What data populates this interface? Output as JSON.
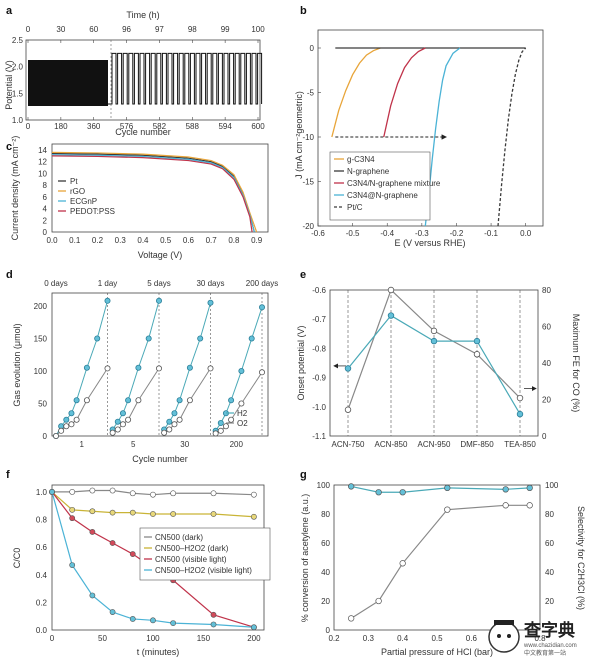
{
  "panels": {
    "a": {
      "letter": "a",
      "top_xlabel": "Time (h)",
      "xlabel": "Cycle number",
      "ylabel": "Potential (V)",
      "top_ticks": [
        "0",
        "30",
        "60",
        "96",
        "97",
        "98",
        "99",
        "100"
      ],
      "bottom_ticks": [
        "0",
        "180",
        "360",
        "576",
        "582",
        "588",
        "594",
        "600"
      ],
      "y_ticks": [
        "1.0",
        "1.5",
        "2.0",
        "2.5"
      ]
    },
    "b": {
      "letter": "b",
      "xlabel": "E (V versus RHE)",
      "ylabel": "J (mA cm⁻²geometric)",
      "x_ticks": [
        "-0.6",
        "-0.5",
        "-0.4",
        "-0.3",
        "-0.2",
        "-0.1",
        "0.0"
      ],
      "y_ticks": [
        "0",
        "-5",
        "-10",
        "-15",
        "-20"
      ],
      "legend": [
        "g-C3N4",
        "N-graphene",
        "C3N4/N-graphene mixture",
        "C3N4@N-graphene",
        "Pt/C"
      ]
    },
    "c": {
      "letter": "c",
      "xlabel": "Voltage (V)",
      "ylabel": "Current density (mA cm⁻²)",
      "x_ticks": [
        "0.0",
        "0.1",
        "0.2",
        "0.3",
        "0.4",
        "0.5",
        "0.6",
        "0.7",
        "0.8",
        "0.9"
      ],
      "y_ticks": [
        "0",
        "2",
        "4",
        "6",
        "8",
        "10",
        "12",
        "14"
      ],
      "legend": [
        "Pt",
        "rGO",
        "ECGnP",
        "PEDOT:PSS"
      ]
    },
    "d": {
      "letter": "d",
      "xlabel": "Cycle number",
      "ylabel": "Gas evolution (μmol)",
      "top_labels": [
        "0 days",
        "1 day",
        "5 days",
        "30 days",
        "200 days"
      ],
      "y_ticks": [
        "0",
        "50",
        "100",
        "150",
        "200"
      ],
      "x_ticks": [
        "1",
        "5",
        "30",
        "200"
      ],
      "legend": [
        "H2",
        "O2"
      ]
    },
    "e": {
      "letter": "e",
      "ylabel": "Onset potential (V)",
      "ylabel_right": "Maximum FE for CO (%)",
      "x_ticks": [
        "ACN-750",
        "ACN-850",
        "ACN-950",
        "DMF-850",
        "TEA-850"
      ],
      "y_ticks": [
        "-0.6",
        "-0.7",
        "-0.8",
        "-0.9",
        "-1.0",
        "-1.1"
      ],
      "y_ticks_right": [
        "80",
        "60",
        "40",
        "20",
        "0"
      ]
    },
    "f": {
      "letter": "f",
      "xlabel": "t (minutes)",
      "ylabel": "C/C0",
      "x_ticks": [
        "0",
        "50",
        "100",
        "150",
        "200"
      ],
      "y_ticks": [
        "0.0",
        "0.2",
        "0.4",
        "0.6",
        "0.8",
        "1.0"
      ],
      "legend": [
        "CN500 (dark)",
        "CN500–H2O2 (dark)",
        "CN500 (visible light)",
        "CN500–H2O2 (visible light)"
      ]
    },
    "g": {
      "letter": "g",
      "xlabel": "Partial pressure of HCl (bar)",
      "ylabel": "% conversion of acetylene (a.u.)",
      "ylabel_right": "Selectivity for C2H3Cl (%)",
      "x_ticks": [
        "0.2",
        "0.3",
        "0.4",
        "0.5",
        "0.6",
        "0.7",
        "0.8"
      ],
      "y_ticks": [
        "0",
        "20",
        "40",
        "60",
        "80",
        "100"
      ],
      "y_ticks_right": [
        "20",
        "40",
        "60",
        "80",
        "100"
      ]
    }
  },
  "watermark": {
    "title": "查字典",
    "subtitle": "www.chazidian.com",
    "tagline": "中文教育第一站"
  },
  "colors": {
    "orange": "#e8a53a",
    "red": "#c0334a",
    "blue": "#4bb3d6",
    "grey": "#888888",
    "teal": "#4aa9b7",
    "olive": "#c9b436",
    "dark": "#3a3a3a"
  },
  "chart_data": [
    {
      "id": "a",
      "type": "line",
      "x_cycle_ticks": [
        0,
        180,
        360,
        576,
        582,
        588,
        594,
        600
      ],
      "potential_high": 2.25,
      "potential_low": 1.3,
      "ylim": [
        1.0,
        2.5
      ],
      "xlabel": "Cycle number",
      "ylabel": "Potential (V)"
    },
    {
      "id": "b",
      "type": "line",
      "xlim": [
        -0.6,
        0.05
      ],
      "ylim": [
        -20,
        0
      ],
      "series": [
        {
          "name": "g-C3N4",
          "x": [
            -0.56,
            -0.54,
            -0.52,
            -0.5,
            -0.48,
            -0.46,
            -0.44,
            -0.42
          ],
          "y": [
            -10,
            -7,
            -4.8,
            -3,
            -1.7,
            -0.8,
            -0.3,
            0
          ]
        },
        {
          "name": "N-graphene",
          "x": [
            -0.55,
            -0.45,
            -0.35,
            -0.25,
            -0.15,
            -0.05,
            0.0
          ],
          "y": [
            0,
            0,
            0,
            0,
            0,
            0,
            0
          ]
        },
        {
          "name": "C3N4/N-graphene mixture",
          "x": [
            -0.41,
            -0.39,
            -0.37,
            -0.35,
            -0.33,
            -0.31,
            -0.29
          ],
          "y": [
            -10,
            -6.5,
            -4,
            -2.2,
            -1.1,
            -0.4,
            0
          ]
        },
        {
          "name": "C3N4@N-graphene",
          "x": [
            -0.29,
            -0.28,
            -0.27,
            -0.26,
            -0.25,
            -0.24,
            -0.23,
            -0.21,
            -0.19
          ],
          "y": [
            -20,
            -16.5,
            -12.5,
            -9,
            -6,
            -3.6,
            -2,
            -0.6,
            0
          ]
        },
        {
          "name": "Pt/C",
          "x": [
            -0.08,
            -0.07,
            -0.06,
            -0.05,
            -0.04,
            -0.03,
            -0.02,
            -0.01,
            0.0
          ],
          "y": [
            -20,
            -15.5,
            -11.5,
            -8,
            -5.2,
            -3,
            -1.4,
            -0.4,
            0
          ]
        }
      ],
      "arrow": {
        "from_x": -0.55,
        "to_x": -0.23,
        "y": -10
      }
    },
    {
      "id": "c",
      "type": "line",
      "xlim": [
        0,
        0.95
      ],
      "ylim": [
        0,
        14
      ],
      "series": [
        {
          "name": "Pt",
          "x": [
            0,
            0.2,
            0.4,
            0.6,
            0.7,
            0.75,
            0.8,
            0.84,
            0.87,
            0.89
          ],
          "y": [
            13.4,
            13.3,
            13.1,
            12.6,
            12.0,
            11.2,
            9.5,
            6.5,
            3.0,
            0
          ]
        },
        {
          "name": "rGO",
          "x": [
            0,
            0.2,
            0.4,
            0.6,
            0.7,
            0.75,
            0.8,
            0.84,
            0.87,
            0.9
          ],
          "y": [
            13.6,
            13.5,
            13.3,
            12.8,
            12.2,
            11.4,
            9.8,
            6.8,
            3.3,
            0
          ]
        },
        {
          "name": "ECGnP",
          "x": [
            0,
            0.2,
            0.4,
            0.6,
            0.7,
            0.75,
            0.8,
            0.84,
            0.87,
            0.89
          ],
          "y": [
            13.2,
            13.1,
            12.9,
            12.4,
            11.8,
            11.0,
            9.3,
            6.3,
            2.9,
            0
          ]
        },
        {
          "name": "PEDOT:PSS",
          "x": [
            0,
            0.2,
            0.4,
            0.6,
            0.7,
            0.75,
            0.8,
            0.84,
            0.87,
            0.88
          ],
          "y": [
            13.0,
            12.9,
            12.7,
            12.2,
            11.6,
            10.8,
            9.0,
            6.0,
            2.6,
            0
          ]
        }
      ]
    },
    {
      "id": "d",
      "type": "scatter",
      "ylim": [
        0,
        220
      ],
      "series": [
        {
          "name": "H2",
          "x": [
            0,
            0.5,
            1,
            1.5,
            2,
            3,
            4,
            5,
            5.5,
            6,
            6.5,
            7,
            8,
            9,
            10,
            10.5,
            11,
            11.5,
            12,
            13,
            14,
            15,
            15.5,
            16,
            16.5,
            17,
            18,
            19,
            20
          ],
          "y": [
            0,
            15,
            25,
            35,
            55,
            105,
            150,
            208,
            10,
            22,
            35,
            55,
            105,
            150,
            208,
            10,
            22,
            35,
            55,
            105,
            150,
            205,
            8,
            20,
            35,
            55,
            100,
            150,
            198
          ]
        },
        {
          "name": "O2",
          "x": [
            0,
            0.5,
            1,
            1.5,
            2,
            3,
            5,
            5.5,
            6,
            6.5,
            7,
            8,
            10,
            10.5,
            11,
            11.5,
            12,
            13,
            15,
            15.5,
            16,
            16.5,
            17,
            18,
            20
          ],
          "y": [
            0,
            8,
            15,
            18,
            25,
            55,
            104,
            5,
            10,
            18,
            25,
            55,
            104,
            5,
            10,
            18,
            25,
            55,
            104,
            4,
            8,
            15,
            25,
            50,
            98
          ]
        }
      ],
      "cycle_boundaries": [
        0,
        5,
        10,
        15,
        20
      ]
    },
    {
      "id": "e",
      "type": "line",
      "categories": [
        "ACN-750",
        "ACN-850",
        "ACN-950",
        "DMF-850",
        "TEA-850"
      ],
      "series": [
        {
          "name": "Onset potential",
          "axis": "left",
          "values": [
            -1.01,
            -0.6,
            -0.74,
            -0.82,
            -0.97
          ]
        },
        {
          "name": "Maximum FE for CO",
          "axis": "right",
          "values": [
            37,
            66,
            52,
            52,
            12
          ]
        }
      ],
      "ylim_left": [
        -1.1,
        -0.6
      ],
      "ylim_right": [
        0,
        80
      ]
    },
    {
      "id": "f",
      "type": "line",
      "xlim": [
        0,
        210
      ],
      "ylim": [
        0,
        1.05
      ],
      "series": [
        {
          "name": "CN500 (dark)",
          "x": [
            0,
            20,
            40,
            60,
            80,
            100,
            120,
            160,
            200
          ],
          "y": [
            1.0,
            1.0,
            1.01,
            1.01,
            0.99,
            0.98,
            0.99,
            0.99,
            0.98
          ]
        },
        {
          "name": "CN500–H2O2 (dark)",
          "x": [
            0,
            20,
            40,
            60,
            80,
            100,
            120,
            160,
            200
          ],
          "y": [
            1.0,
            0.87,
            0.86,
            0.85,
            0.85,
            0.84,
            0.84,
            0.84,
            0.82
          ]
        },
        {
          "name": "CN500 (visible light)",
          "x": [
            0,
            20,
            40,
            60,
            80,
            100,
            120,
            160,
            200
          ],
          "y": [
            1.0,
            0.81,
            0.71,
            0.63,
            0.55,
            0.45,
            0.36,
            0.11,
            0.02
          ]
        },
        {
          "name": "CN500–H2O2 (visible light)",
          "x": [
            0,
            20,
            40,
            60,
            80,
            100,
            120,
            160,
            200
          ],
          "y": [
            1.0,
            0.47,
            0.25,
            0.13,
            0.08,
            0.07,
            0.05,
            0.04,
            0.02
          ]
        }
      ]
    },
    {
      "id": "g",
      "type": "line",
      "xlim": [
        0.2,
        0.8
      ],
      "ylim": [
        0,
        100
      ],
      "series": [
        {
          "name": "% conversion of acetylene",
          "axis": "left",
          "x": [
            0.25,
            0.33,
            0.4,
            0.53,
            0.7,
            0.77
          ],
          "y": [
            8,
            20,
            46,
            83,
            86,
            86
          ]
        },
        {
          "name": "Selectivity for C2H3Cl",
          "axis": "right",
          "x": [
            0.25,
            0.33,
            0.4,
            0.53,
            0.7,
            0.77
          ],
          "y": [
            99,
            95,
            95,
            98,
            97,
            98
          ]
        }
      ]
    }
  ]
}
